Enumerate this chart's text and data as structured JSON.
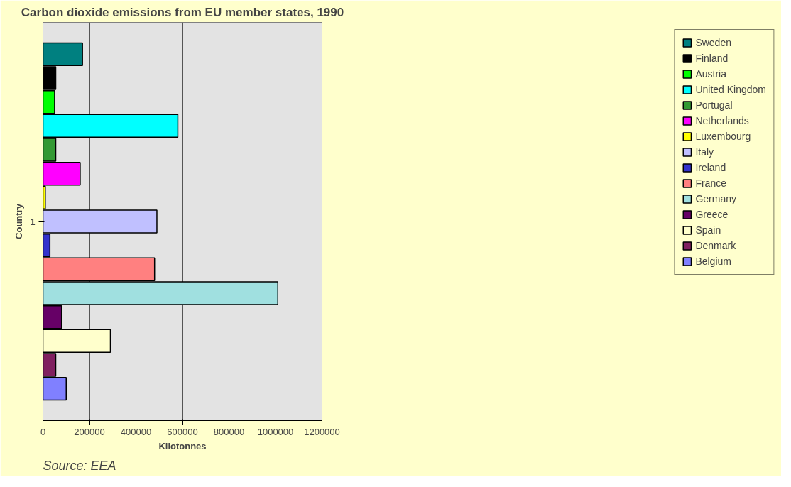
{
  "chart_data": {
    "type": "bar",
    "orientation": "horizontal",
    "title": "Carbon dioxide emissions from EU member states, 1990",
    "xlabel": "Kilotonnes",
    "ylabel": "Country",
    "annotations": [
      "Source: EEA"
    ],
    "categories": [
      "1"
    ],
    "xlim": [
      0,
      1200000
    ],
    "xticks": [
      0,
      200000,
      400000,
      600000,
      800000,
      1000000,
      1200000
    ],
    "grid": "x",
    "legend": "right",
    "series": [
      {
        "name": "Belgium",
        "color": "#8080ff",
        "values": [
          100000
        ]
      },
      {
        "name": "Denmark",
        "color": "#802060",
        "values": [
          55000
        ]
      },
      {
        "name": "Spain",
        "color": "#ffffcc",
        "values": [
          290000
        ]
      },
      {
        "name": "Greece",
        "color": "#660066",
        "values": [
          80000
        ]
      },
      {
        "name": "Germany",
        "color": "#a0e0e0",
        "values": [
          1010000
        ]
      },
      {
        "name": "France",
        "color": "#ff8080",
        "values": [
          480000
        ]
      },
      {
        "name": "Ireland",
        "color": "#3333cc",
        "values": [
          30000
        ]
      },
      {
        "name": "Italy",
        "color": "#c0c0ff",
        "values": [
          490000
        ]
      },
      {
        "name": "Luxembourg",
        "color": "#ffff00",
        "values": [
          10000
        ]
      },
      {
        "name": "Netherlands",
        "color": "#ff00ff",
        "values": [
          160000
        ]
      },
      {
        "name": "Portugal",
        "color": "#339933",
        "values": [
          55000
        ]
      },
      {
        "name": "United Kingdom",
        "color": "#00ffff",
        "values": [
          580000
        ]
      },
      {
        "name": "Austria",
        "color": "#00ff00",
        "values": [
          50000
        ]
      },
      {
        "name": "Finland",
        "color": "#000000",
        "values": [
          55000
        ]
      },
      {
        "name": "Sweden",
        "color": "#008080",
        "values": [
          170000
        ]
      }
    ]
  }
}
